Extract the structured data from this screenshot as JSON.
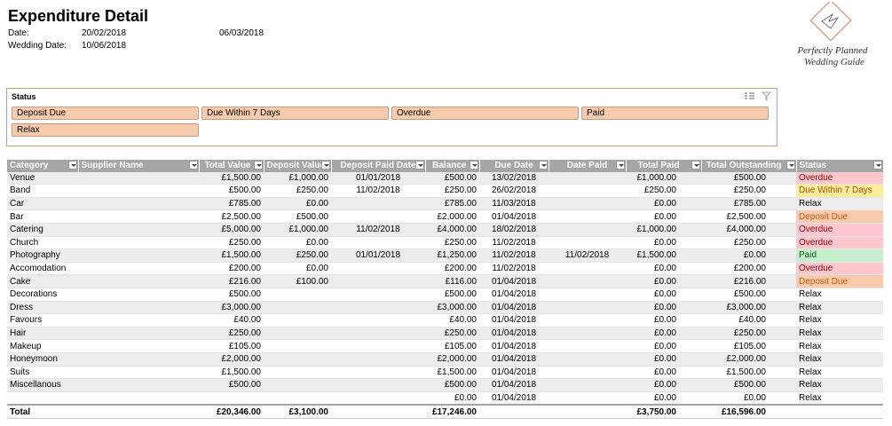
{
  "header": {
    "title": "Expenditure Detail",
    "date_label": "Date:",
    "date": "20/02/2018",
    "today": "06/03/2018",
    "wedding_date_label": "Wedding Date:",
    "wedding_date": "10/06/2018"
  },
  "logo": {
    "line1": "Perfectly Planned",
    "line2": "Wedding Guide"
  },
  "slicer": {
    "title": "Status",
    "items": [
      "Deposit Due",
      "Due Within 7 Days",
      "Overdue",
      "Paid",
      "Relax"
    ]
  },
  "table": {
    "columns": [
      "Category",
      "Supplier Name",
      "Total Value",
      "Deposit Value",
      "Deposit Paid Date",
      "Balance",
      "Due Date",
      "Date Paid",
      "Total Paid",
      "Total Outstanding",
      "Status"
    ],
    "rows": [
      [
        "Venue",
        null,
        "£1,500.00",
        "£1,000.00",
        "01/01/2018",
        "£500.00",
        "13/02/2018",
        null,
        "£1,000.00",
        "£500.00",
        "Overdue"
      ],
      [
        "Band",
        null,
        "£500.00",
        "£250.00",
        "11/02/2018",
        "£250.00",
        "26/02/2018",
        null,
        "£250.00",
        "£250.00",
        "Due Within 7 Days"
      ],
      [
        "Car",
        null,
        "£785.00",
        "£0.00",
        null,
        "£785.00",
        "11/03/2018",
        null,
        "£0.00",
        "£785.00",
        "Relax"
      ],
      [
        "Bar",
        null,
        "£2,500.00",
        "£500.00",
        null,
        "£2,000.00",
        "01/04/2018",
        null,
        "£0.00",
        "£2,500.00",
        "Deposit Due"
      ],
      [
        "Catering",
        null,
        "£5,000.00",
        "£1,000.00",
        "11/02/2018",
        "£4,000.00",
        "18/02/2018",
        null,
        "£1,000.00",
        "£4,000.00",
        "Overdue"
      ],
      [
        "Church",
        null,
        "£250.00",
        "£0.00",
        null,
        "£250.00",
        "11/02/2018",
        null,
        "£0.00",
        "£250.00",
        "Overdue"
      ],
      [
        "Photography",
        null,
        "£1,500.00",
        "£250.00",
        "01/01/2018",
        "£1,250.00",
        "11/02/2018",
        "11/02/2018",
        "£1,500.00",
        "£0.00",
        "Paid"
      ],
      [
        "Accomodation",
        null,
        "£200.00",
        "£0.00",
        null,
        "£200.00",
        "11/02/2018",
        null,
        "£0.00",
        "£200.00",
        "Overdue"
      ],
      [
        "Cake",
        null,
        "£216.00",
        "£100.00",
        null,
        "£116.00",
        "01/04/2018",
        null,
        "£0.00",
        "£216.00",
        "Deposit Due"
      ],
      [
        "Decorations",
        null,
        "£500.00",
        null,
        null,
        "£500.00",
        "01/04/2018",
        null,
        "£0.00",
        "£500.00",
        "Relax"
      ],
      [
        "Dress",
        null,
        "£3,000.00",
        null,
        null,
        "£3,000.00",
        "01/04/2018",
        null,
        "£0.00",
        "£3,000.00",
        "Relax"
      ],
      [
        "Favours",
        null,
        "£40.00",
        null,
        null,
        "£40.00",
        "01/04/2018",
        null,
        "£0.00",
        "£40.00",
        "Relax"
      ],
      [
        "Hair",
        null,
        "£250.00",
        null,
        null,
        "£250.00",
        "01/04/2018",
        null,
        "£0.00",
        "£250.00",
        "Relax"
      ],
      [
        "Makeup",
        null,
        "£105.00",
        null,
        null,
        "£105.00",
        "01/04/2018",
        null,
        "£0.00",
        "£105.00",
        "Relax"
      ],
      [
        "Honeymoon",
        null,
        "£2,000.00",
        null,
        null,
        "£2,000.00",
        "01/04/2018",
        null,
        "£0.00",
        "£2,000.00",
        "Relax"
      ],
      [
        "Suits",
        null,
        "£1,500.00",
        null,
        null,
        "£1,500.00",
        "01/04/2018",
        null,
        "£0.00",
        "£1,500.00",
        "Relax"
      ],
      [
        "Miscellanous",
        null,
        "£500.00",
        null,
        null,
        "£500.00",
        "01/04/2018",
        null,
        "£0.00",
        "£500.00",
        "Relax"
      ],
      [
        null,
        null,
        null,
        null,
        null,
        "£0.00",
        "01/04/2018",
        null,
        "£0.00",
        "£0.00",
        "Relax"
      ]
    ],
    "total": [
      "Total",
      null,
      "£20,346.00",
      "£3,100.00",
      null,
      "£17,246.00",
      null,
      null,
      "£3,750.00",
      "£16,596.00",
      null
    ]
  },
  "status_colors": {
    "Overdue": {
      "bg": "#ffc7ce",
      "fg": "#9c0006"
    },
    "Due Within 7 Days": {
      "bg": "#ffeb9c",
      "fg": "#9c5700"
    },
    "Deposit Due": {
      "bg": "#f8cbad",
      "fg": "#c65911"
    },
    "Paid": {
      "bg": "#c6efce",
      "fg": "#006100"
    }
  }
}
